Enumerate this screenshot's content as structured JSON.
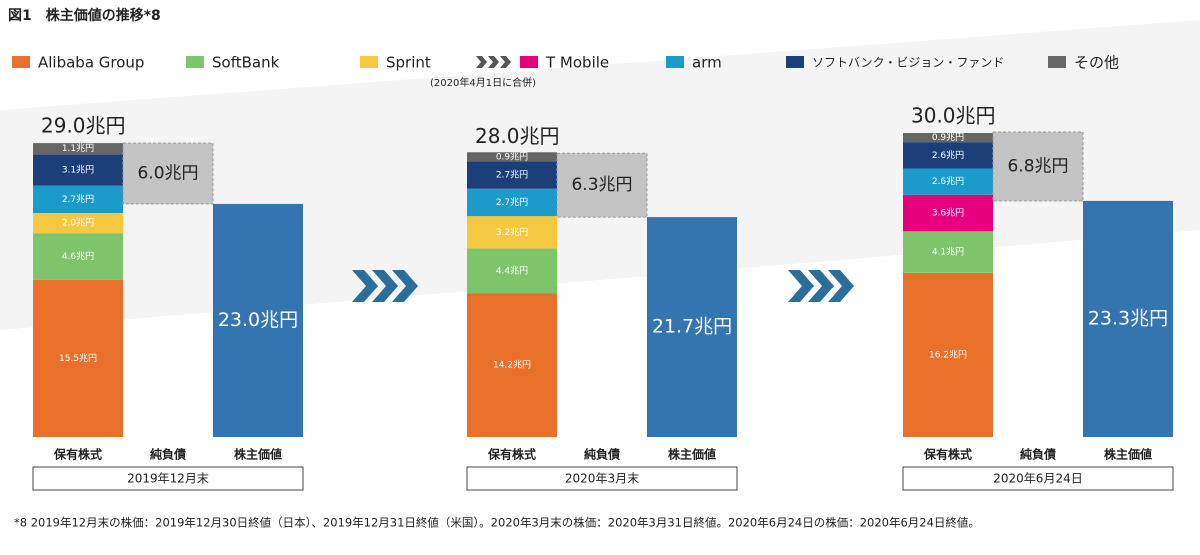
{
  "title": "図1　株主価値の推移*8",
  "legend_note": "(2020年4月1日に合併)",
  "footnote": "*8 2019年12月末の株価：2019年12月30日終値（日本）、2019年12月31日終値（米国）。2020年3月末の株価：2020年3月31日終値。2020年6月24日の株価：2020年6月24日終値。",
  "chart_data": {
    "type": "stacked_waterfall",
    "categories": [
      "2019年12月末",
      "2020年3月末",
      "2020年6月24日"
    ],
    "bar_labels": [
      "保有株式",
      "純負債",
      "株主価値"
    ],
    "ylim": [
      0,
      30
    ],
    "series": [
      {
        "name": "Alibaba Group",
        "color": "#e8702a",
        "values": [
          15.5,
          14.2,
          16.2
        ],
        "value_labels": [
          "15.5兆円",
          "14.2兆円",
          "16.2兆円"
        ]
      },
      {
        "name": "SoftBank",
        "color": "#7dc46a",
        "values": [
          4.6,
          4.4,
          4.1
        ],
        "value_labels": [
          "4.6兆円",
          "4.4兆円",
          "4.1兆円"
        ]
      },
      {
        "name": "Sprint",
        "color": "#f5c842",
        "values": [
          2.0,
          3.2,
          null
        ],
        "value_labels": [
          "2.0兆円",
          "3.2兆円",
          null
        ]
      },
      {
        "name": "T Mobile",
        "color": "#e6007e",
        "values": [
          null,
          null,
          3.6
        ],
        "value_labels": [
          null,
          null,
          "3.6兆円"
        ]
      },
      {
        "name": "arm",
        "color": "#1a9bc9",
        "values": [
          2.7,
          2.7,
          2.6
        ],
        "value_labels": [
          "2.7兆円",
          "2.7兆円",
          "2.6兆円"
        ]
      },
      {
        "name": "ソフトバンク・ビジョン・ファンド",
        "color": "#1c3f7a",
        "values": [
          3.1,
          2.7,
          2.6
        ],
        "value_labels": [
          "3.1兆円",
          "2.7兆円",
          "2.6兆円"
        ]
      },
      {
        "name": "その他",
        "color": "#666666",
        "values": [
          1.1,
          0.9,
          0.9
        ],
        "value_labels": [
          "1.1兆円",
          "0.9兆円",
          "0.9兆円"
        ]
      }
    ],
    "totals": {
      "values": [
        29.0,
        28.0,
        30.0
      ],
      "value_labels": [
        "29.0兆円",
        "28.0兆円",
        "30.0兆円"
      ]
    },
    "net_debt": {
      "color": "#c4c4c4",
      "values": [
        6.0,
        6.3,
        6.8
      ],
      "value_labels": [
        "6.0兆円",
        "6.3兆円",
        "6.8兆円"
      ]
    },
    "equity_value": {
      "color": "#3474b0",
      "values": [
        23.0,
        21.7,
        23.3
      ],
      "value_labels": [
        "23.0兆円",
        "21.7兆円",
        "23.3兆円"
      ]
    }
  }
}
